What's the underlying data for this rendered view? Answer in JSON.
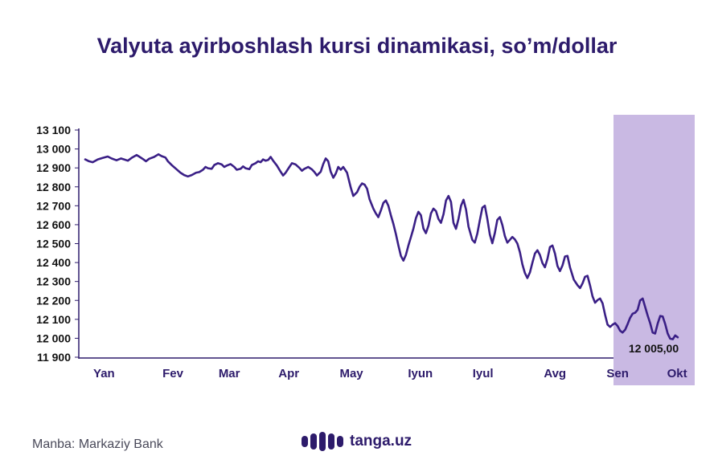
{
  "title": "Valyuta ayirboshlash kursi dinamikasi, so’m/dollar",
  "source": "Manba: Markaziy Bank",
  "logo": {
    "text": "tanga.uz"
  },
  "colors": {
    "line": "#3a1f86",
    "highlight": "#c9b9e3",
    "title": "#2d1b6b",
    "axis": "#2d1b6b"
  },
  "chart_data": {
    "type": "line",
    "title": "Valyuta ayirboshlash kursi dinamikasi, so’m/dollar",
    "xlabel": "",
    "ylabel": "",
    "ylim": [
      11900,
      13100
    ],
    "yticks": [
      11900,
      12000,
      12100,
      12200,
      12300,
      12400,
      12500,
      12600,
      12700,
      12800,
      12900,
      13000,
      13100
    ],
    "ytick_labels": [
      "11 900",
      "12 000",
      "12 100",
      "12 200",
      "12 300",
      "12 400",
      "12 500",
      "12 600",
      "12 700",
      "12 800",
      "12 900",
      "13 000",
      "13 100"
    ],
    "months": [
      {
        "label": "Yan",
        "x": 0.3
      },
      {
        "label": "Fev",
        "x": 1.4
      },
      {
        "label": "Mar",
        "x": 2.3
      },
      {
        "label": "Apr",
        "x": 3.25
      },
      {
        "label": "May",
        "x": 4.25
      },
      {
        "label": "Iyun",
        "x": 5.35
      },
      {
        "label": "Iyul",
        "x": 6.35
      },
      {
        "label": "Avg",
        "x": 7.5
      },
      {
        "label": "Sen",
        "x": 8.5
      },
      {
        "label": "Okt",
        "x": 9.45
      }
    ],
    "xlim": [
      0,
      10.1
    ],
    "highlight": {
      "from": 8.85,
      "to": 10.1,
      "label": "Okt"
    },
    "last_value_label": "12 005,00",
    "grid": false,
    "series": [
      {
        "values": [
          [
            0.0,
            12945
          ],
          [
            0.06,
            12935
          ],
          [
            0.12,
            12930
          ],
          [
            0.2,
            12945
          ],
          [
            0.3,
            12955
          ],
          [
            0.36,
            12960
          ],
          [
            0.42,
            12950
          ],
          [
            0.5,
            12940
          ],
          [
            0.57,
            12950
          ],
          [
            0.62,
            12945
          ],
          [
            0.68,
            12938
          ],
          [
            0.75,
            12955
          ],
          [
            0.82,
            12968
          ],
          [
            0.86,
            12960
          ],
          [
            0.93,
            12945
          ],
          [
            0.97,
            12935
          ],
          [
            1.02,
            12948
          ],
          [
            1.1,
            12958
          ],
          [
            1.17,
            12972
          ],
          [
            1.22,
            12962
          ],
          [
            1.28,
            12955
          ],
          [
            1.32,
            12935
          ],
          [
            1.38,
            12915
          ],
          [
            1.45,
            12895
          ],
          [
            1.52,
            12875
          ],
          [
            1.58,
            12862
          ],
          [
            1.64,
            12855
          ],
          [
            1.7,
            12862
          ],
          [
            1.77,
            12875
          ],
          [
            1.82,
            12878
          ],
          [
            1.88,
            12890
          ],
          [
            1.92,
            12905
          ],
          [
            1.96,
            12898
          ],
          [
            2.02,
            12895
          ],
          [
            2.06,
            12915
          ],
          [
            2.12,
            12925
          ],
          [
            2.18,
            12918
          ],
          [
            2.22,
            12905
          ],
          [
            2.26,
            12912
          ],
          [
            2.32,
            12920
          ],
          [
            2.38,
            12905
          ],
          [
            2.42,
            12890
          ],
          [
            2.48,
            12895
          ],
          [
            2.52,
            12908
          ],
          [
            2.56,
            12898
          ],
          [
            2.62,
            12893
          ],
          [
            2.66,
            12915
          ],
          [
            2.72,
            12925
          ],
          [
            2.76,
            12935
          ],
          [
            2.8,
            12930
          ],
          [
            2.84,
            12945
          ],
          [
            2.88,
            12938
          ],
          [
            2.92,
            12942
          ],
          [
            2.96,
            12958
          ],
          [
            3.0,
            12938
          ],
          [
            3.06,
            12912
          ],
          [
            3.12,
            12880
          ],
          [
            3.16,
            12860
          ],
          [
            3.2,
            12875
          ],
          [
            3.26,
            12905
          ],
          [
            3.3,
            12925
          ],
          [
            3.36,
            12918
          ],
          [
            3.42,
            12900
          ],
          [
            3.46,
            12885
          ],
          [
            3.5,
            12895
          ],
          [
            3.56,
            12905
          ],
          [
            3.62,
            12892
          ],
          [
            3.66,
            12878
          ],
          [
            3.7,
            12860
          ],
          [
            3.76,
            12880
          ],
          [
            3.8,
            12920
          ],
          [
            3.84,
            12950
          ],
          [
            3.88,
            12935
          ],
          [
            3.92,
            12880
          ],
          [
            3.96,
            12848
          ],
          [
            4.0,
            12870
          ],
          [
            4.04,
            12905
          ],
          [
            4.08,
            12890
          ],
          [
            4.12,
            12905
          ],
          [
            4.18,
            12875
          ],
          [
            4.24,
            12795
          ],
          [
            4.28,
            12752
          ],
          [
            4.34,
            12772
          ],
          [
            4.38,
            12800
          ],
          [
            4.42,
            12818
          ],
          [
            4.46,
            12812
          ],
          [
            4.5,
            12790
          ],
          [
            4.54,
            12735
          ],
          [
            4.6,
            12685
          ],
          [
            4.64,
            12660
          ],
          [
            4.68,
            12640
          ],
          [
            4.72,
            12675
          ],
          [
            4.76,
            12715
          ],
          [
            4.8,
            12728
          ],
          [
            4.84,
            12700
          ],
          [
            4.88,
            12650
          ],
          [
            4.92,
            12605
          ],
          [
            4.96,
            12550
          ],
          [
            5.0,
            12490
          ],
          [
            5.04,
            12435
          ],
          [
            5.08,
            12410
          ],
          [
            5.12,
            12440
          ],
          [
            5.16,
            12490
          ],
          [
            5.2,
            12535
          ],
          [
            5.24,
            12580
          ],
          [
            5.28,
            12635
          ],
          [
            5.32,
            12668
          ],
          [
            5.36,
            12650
          ],
          [
            5.4,
            12580
          ],
          [
            5.44,
            12555
          ],
          [
            5.48,
            12595
          ],
          [
            5.52,
            12660
          ],
          [
            5.56,
            12685
          ],
          [
            5.6,
            12672
          ],
          [
            5.64,
            12630
          ],
          [
            5.68,
            12610
          ],
          [
            5.72,
            12655
          ],
          [
            5.76,
            12728
          ],
          [
            5.8,
            12752
          ],
          [
            5.84,
            12720
          ],
          [
            5.88,
            12610
          ],
          [
            5.92,
            12578
          ],
          [
            5.96,
            12632
          ],
          [
            6.0,
            12700
          ],
          [
            6.04,
            12732
          ],
          [
            6.08,
            12680
          ],
          [
            6.12,
            12590
          ],
          [
            6.18,
            12520
          ],
          [
            6.22,
            12505
          ],
          [
            6.26,
            12552
          ],
          [
            6.3,
            12622
          ],
          [
            6.34,
            12690
          ],
          [
            6.38,
            12700
          ],
          [
            6.42,
            12630
          ],
          [
            6.46,
            12548
          ],
          [
            6.5,
            12502
          ],
          [
            6.54,
            12555
          ],
          [
            6.58,
            12625
          ],
          [
            6.62,
            12640
          ],
          [
            6.66,
            12598
          ],
          [
            6.7,
            12540
          ],
          [
            6.74,
            12505
          ],
          [
            6.78,
            12520
          ],
          [
            6.82,
            12535
          ],
          [
            6.86,
            12522
          ],
          [
            6.9,
            12500
          ],
          [
            6.94,
            12455
          ],
          [
            6.98,
            12390
          ],
          [
            7.02,
            12345
          ],
          [
            7.06,
            12318
          ],
          [
            7.1,
            12348
          ],
          [
            7.14,
            12400
          ],
          [
            7.18,
            12448
          ],
          [
            7.22,
            12465
          ],
          [
            7.26,
            12440
          ],
          [
            7.3,
            12398
          ],
          [
            7.34,
            12375
          ],
          [
            7.38,
            12420
          ],
          [
            7.42,
            12482
          ],
          [
            7.46,
            12490
          ],
          [
            7.5,
            12448
          ],
          [
            7.54,
            12382
          ],
          [
            7.58,
            12355
          ],
          [
            7.62,
            12385
          ],
          [
            7.66,
            12432
          ],
          [
            7.7,
            12435
          ],
          [
            7.74,
            12375
          ],
          [
            7.8,
            12310
          ],
          [
            7.86,
            12280
          ],
          [
            7.9,
            12265
          ],
          [
            7.94,
            12290
          ],
          [
            7.98,
            12325
          ],
          [
            8.02,
            12330
          ],
          [
            8.06,
            12280
          ],
          [
            8.1,
            12222
          ],
          [
            8.14,
            12188
          ],
          [
            8.18,
            12202
          ],
          [
            8.22,
            12210
          ],
          [
            8.26,
            12185
          ],
          [
            8.3,
            12125
          ],
          [
            8.34,
            12072
          ],
          [
            8.38,
            12060
          ],
          [
            8.42,
            12072
          ],
          [
            8.46,
            12080
          ],
          [
            8.5,
            12065
          ],
          [
            8.54,
            12040
          ],
          [
            8.58,
            12030
          ],
          [
            8.62,
            12045
          ],
          [
            8.66,
            12075
          ],
          [
            8.7,
            12108
          ],
          [
            8.74,
            12130
          ],
          [
            8.78,
            12135
          ],
          [
            8.82,
            12150
          ],
          [
            8.86,
            12200
          ],
          [
            8.9,
            12210
          ],
          [
            8.94,
            12165
          ],
          [
            8.98,
            12120
          ],
          [
            9.02,
            12080
          ],
          [
            9.06,
            12030
          ],
          [
            9.1,
            12025
          ],
          [
            9.14,
            12078
          ],
          [
            9.18,
            12118
          ],
          [
            9.22,
            12115
          ],
          [
            9.26,
            12075
          ],
          [
            9.3,
            12025
          ],
          [
            9.34,
            11998
          ],
          [
            9.38,
            11995
          ],
          [
            9.42,
            12015
          ],
          [
            9.46,
            12005
          ]
        ]
      }
    ]
  }
}
